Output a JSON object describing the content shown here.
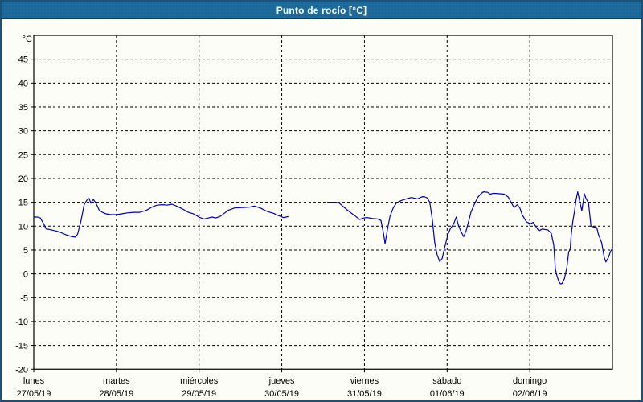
{
  "window": {
    "title": "Punto de rocío [°C]"
  },
  "colors": {
    "titlebar_bg": "#1e6b9e",
    "titlebar_border": "#123a56",
    "frame_border": "#1d5178",
    "background": "#fcfdf6",
    "axis": "#000000",
    "grid": "#000000",
    "text": "#000000",
    "line": "#0000bb"
  },
  "chart_data": {
    "type": "line",
    "title": "Punto de rocío [°C]",
    "ylabel": "°C",
    "xlabel": "",
    "ylim": [
      -20,
      50
    ],
    "xlim_days": [
      0,
      7
    ],
    "ytick_step": 5,
    "yticks": [
      45,
      40,
      35,
      30,
      25,
      20,
      15,
      10,
      5,
      0,
      -5,
      -10,
      -15,
      -20
    ],
    "grid": "dashed",
    "legend_position": "none",
    "x_days": [
      {
        "name": "lunes",
        "date": "27/05/19"
      },
      {
        "name": "martes",
        "date": "28/05/19"
      },
      {
        "name": "miércoles",
        "date": "29/05/19"
      },
      {
        "name": "jueves",
        "date": "30/05/19"
      },
      {
        "name": "viernes",
        "date": "31/05/19"
      },
      {
        "name": "sábado",
        "date": "01/06/19"
      },
      {
        "name": "domingo",
        "date": "02/06/19"
      }
    ],
    "series": [
      {
        "name": "Punto de rocío",
        "color": "#0000bb",
        "unit": "°C",
        "x_unit": "days since 27/05/19 00:00",
        "segments": [
          [
            [
              0,
              11.9
            ],
            [
              0.05,
              11.9
            ],
            [
              0.08,
              11.7
            ],
            [
              0.12,
              10.5
            ],
            [
              0.15,
              9.4
            ],
            [
              0.19,
              9.3
            ],
            [
              0.24,
              9.1
            ],
            [
              0.31,
              8.8
            ],
            [
              0.39,
              8.2
            ],
            [
              0.46,
              7.8
            ],
            [
              0.5,
              7.7
            ],
            [
              0.53,
              8.3
            ],
            [
              0.57,
              11.0
            ],
            [
              0.61,
              14.5
            ],
            [
              0.64,
              15.4
            ],
            [
              0.67,
              15.8
            ],
            [
              0.69,
              14.8
            ],
            [
              0.72,
              15.6
            ],
            [
              0.75,
              14.9
            ],
            [
              0.79,
              13.4
            ],
            [
              0.83,
              12.9
            ],
            [
              0.87,
              12.6
            ],
            [
              0.93,
              12.4
            ],
            [
              1.0,
              12.4
            ],
            [
              1.07,
              12.6
            ],
            [
              1.14,
              12.8
            ],
            [
              1.21,
              12.9
            ],
            [
              1.28,
              12.9
            ],
            [
              1.36,
              13.3
            ],
            [
              1.43,
              14.0
            ],
            [
              1.49,
              14.4
            ],
            [
              1.56,
              14.5
            ],
            [
              1.61,
              14.4
            ],
            [
              1.67,
              14.6
            ],
            [
              1.73,
              14.2
            ],
            [
              1.8,
              13.6
            ],
            [
              1.87,
              12.9
            ],
            [
              1.93,
              12.6
            ],
            [
              1.97,
              12.2
            ],
            [
              2.01,
              11.8
            ],
            [
              2.06,
              11.5
            ],
            [
              2.11,
              11.7
            ],
            [
              2.16,
              11.9
            ],
            [
              2.2,
              11.7
            ],
            [
              2.26,
              12.1
            ],
            [
              2.35,
              13.3
            ],
            [
              2.43,
              13.8
            ],
            [
              2.53,
              13.9
            ],
            [
              2.61,
              14.0
            ],
            [
              2.67,
              14.2
            ],
            [
              2.74,
              13.8
            ],
            [
              2.82,
              13.1
            ],
            [
              2.9,
              12.7
            ],
            [
              2.96,
              12.2
            ],
            [
              3.02,
              11.8
            ],
            [
              3.08,
              12.0
            ]
          ],
          [
            [
              3.55,
              15.0
            ],
            [
              3.65,
              15.0
            ],
            [
              3.69,
              14.9
            ],
            [
              3.75,
              14.0
            ],
            [
              3.82,
              13.0
            ],
            [
              3.89,
              12.1
            ],
            [
              3.94,
              11.4
            ],
            [
              3.99,
              11.7
            ],
            [
              4.03,
              11.8
            ],
            [
              4.1,
              11.6
            ],
            [
              4.16,
              11.5
            ],
            [
              4.2,
              11.2
            ],
            [
              4.23,
              8.5
            ],
            [
              4.25,
              6.3
            ],
            [
              4.28,
              9.5
            ],
            [
              4.31,
              12.1
            ],
            [
              4.35,
              13.9
            ],
            [
              4.39,
              14.9
            ],
            [
              4.45,
              15.4
            ],
            [
              4.52,
              15.8
            ],
            [
              4.57,
              16.0
            ],
            [
              4.64,
              15.7
            ],
            [
              4.69,
              16.1
            ],
            [
              4.72,
              16.2
            ],
            [
              4.76,
              15.9
            ],
            [
              4.79,
              15.0
            ],
            [
              4.82,
              11.5
            ],
            [
              4.85,
              6.5
            ],
            [
              4.88,
              4.0
            ],
            [
              4.91,
              2.6
            ],
            [
              4.94,
              3.2
            ],
            [
              4.97,
              5.5
            ],
            [
              5.01,
              8.3
            ],
            [
              5.04,
              9.5
            ],
            [
              5.08,
              10.5
            ],
            [
              5.11,
              11.9
            ],
            [
              5.14,
              10.0
            ],
            [
              5.17,
              8.8
            ],
            [
              5.2,
              7.8
            ],
            [
              5.23,
              9.0
            ],
            [
              5.26,
              11.0
            ],
            [
              5.29,
              13.0
            ],
            [
              5.33,
              14.6
            ],
            [
              5.37,
              16.0
            ],
            [
              5.41,
              16.8
            ],
            [
              5.44,
              17.2
            ],
            [
              5.49,
              17.1
            ],
            [
              5.52,
              16.7
            ],
            [
              5.56,
              16.9
            ],
            [
              5.62,
              16.8
            ],
            [
              5.69,
              16.7
            ],
            [
              5.74,
              16.1
            ],
            [
              5.78,
              14.8
            ],
            [
              5.81,
              13.9
            ],
            [
              5.85,
              14.5
            ],
            [
              5.88,
              13.8
            ],
            [
              5.91,
              12.3
            ],
            [
              5.96,
              10.9
            ],
            [
              6.01,
              10.5
            ],
            [
              6.04,
              10.8
            ],
            [
              6.07,
              10.0
            ],
            [
              6.11,
              9.0
            ],
            [
              6.15,
              9.4
            ],
            [
              6.18,
              9.3
            ],
            [
              6.22,
              9.2
            ],
            [
              6.26,
              8.5
            ],
            [
              6.29,
              6.0
            ],
            [
              6.31,
              1.0
            ],
            [
              6.33,
              -0.5
            ],
            [
              6.35,
              -1.5
            ],
            [
              6.37,
              -2.1
            ],
            [
              6.39,
              -2.0
            ],
            [
              6.42,
              -1.0
            ],
            [
              6.45,
              1.5
            ],
            [
              6.47,
              4.5
            ],
            [
              6.49,
              5.3
            ],
            [
              6.5,
              8.0
            ],
            [
              6.52,
              10.9
            ],
            [
              6.54,
              13.0
            ],
            [
              6.56,
              15.5
            ],
            [
              6.58,
              17.2
            ],
            [
              6.6,
              15.5
            ],
            [
              6.63,
              13.2
            ],
            [
              6.66,
              16.8
            ],
            [
              6.68,
              15.8
            ],
            [
              6.71,
              14.9
            ],
            [
              6.74,
              10.0
            ],
            [
              6.78,
              9.8
            ],
            [
              6.81,
              9.7
            ],
            [
              6.83,
              8.3
            ],
            [
              6.87,
              6.5
            ],
            [
              6.9,
              3.5
            ],
            [
              6.92,
              2.5
            ],
            [
              6.95,
              3.4
            ],
            [
              6.98,
              4.8
            ],
            [
              7.0,
              5.3
            ]
          ]
        ]
      }
    ]
  }
}
